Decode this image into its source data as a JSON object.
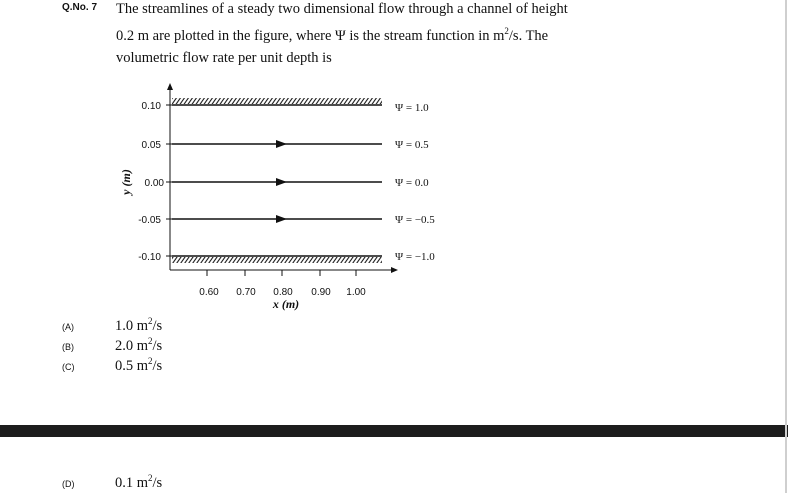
{
  "question": {
    "number": "Q.No. 7",
    "line1": "The streamlines of a steady two dimensional flow through a channel of height",
    "line2_pre": "0.2 m are plotted in the figure, where Ψ is the stream function in m",
    "line2_sup": "2",
    "line2_post": "/s. The",
    "line3": "volumetric flow rate per unit depth is"
  },
  "figure": {
    "ylabel": "y (m)",
    "xlabel": "x (m)",
    "yticks": [
      "0.10",
      "0.05",
      "0.00",
      "-0.05",
      "-0.10"
    ],
    "xticks": [
      "0.60",
      "0.70",
      "0.80",
      "0.90",
      "1.00"
    ],
    "psi_labels": [
      "Ψ = 1.0",
      "Ψ = 0.5",
      "Ψ = 0.0",
      "Ψ = −0.5",
      "Ψ = −1.0"
    ]
  },
  "chart_data": {
    "type": "line",
    "title": "",
    "xlabel": "x (m)",
    "ylabel": "y (m)",
    "x_tick_labels": [
      "0.60",
      "0.70",
      "0.80",
      "0.90",
      "1.00"
    ],
    "y_tick_labels": [
      "0.10",
      "0.05",
      "0.00",
      "-0.05",
      "-0.10"
    ],
    "walls": [
      {
        "y": 0.1
      },
      {
        "y": -0.1
      }
    ],
    "series": [
      {
        "name": "Ψ = 1.0",
        "y": 0.1
      },
      {
        "name": "Ψ = 0.5",
        "y": 0.05
      },
      {
        "name": "Ψ = 0.0",
        "y": 0.0
      },
      {
        "name": "Ψ = −0.5",
        "y": -0.05
      },
      {
        "name": "Ψ = −1.0",
        "y": -0.1
      }
    ]
  },
  "options": [
    {
      "letter": "(A)",
      "value": "1.0 m",
      "sup": "2",
      "unit": "/s"
    },
    {
      "letter": "(B)",
      "value": "2.0 m",
      "sup": "2",
      "unit": "/s"
    },
    {
      "letter": "(C)",
      "value": "0.5 m",
      "sup": "2",
      "unit": "/s"
    },
    {
      "letter": "(D)",
      "value": "0.1 m",
      "sup": "2",
      "unit": "/s"
    }
  ]
}
